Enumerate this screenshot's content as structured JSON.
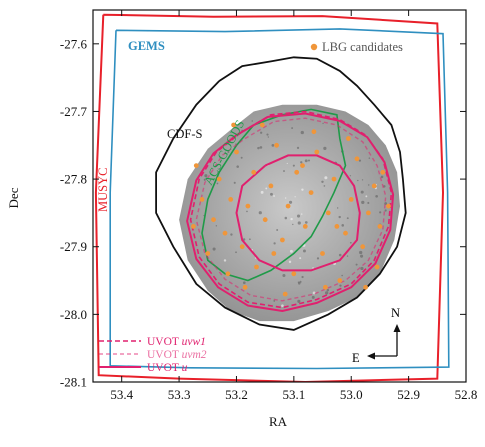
{
  "chart_data": {
    "type": "scatter",
    "title": "",
    "xlabel": "RA",
    "ylabel": "Dec",
    "xlim": [
      53.45,
      52.8
    ],
    "ylim": [
      -28.1,
      -27.55
    ],
    "x_ticks": [
      "53.4",
      "53.3",
      "53.2",
      "53.1",
      "53.0",
      "52.9",
      "52.8"
    ],
    "x_tick_values": [
      53.4,
      53.3,
      53.2,
      53.1,
      53.0,
      52.9,
      52.8
    ],
    "y_ticks": [
      "-27.6",
      "-27.7",
      "-27.8",
      "-27.9",
      "-28.0",
      "-28.1"
    ],
    "y_tick_values": [
      -27.6,
      -27.7,
      -27.8,
      -27.9,
      -28.0,
      -28.1
    ],
    "x_inverted": true,
    "grid": false,
    "colors": {
      "musyc": "#e8202a",
      "gems": "#2f8fc0",
      "cdfs": "#111111",
      "goods": "#1f9a48",
      "uvot": "#e0206e",
      "lbg": "#f0963a",
      "image_light": "#c9c9c9",
      "image_dark": "#8e8e8e"
    },
    "annotations": {
      "gems": "GEMS",
      "musyc": "MUSYC",
      "cdfs": "CDF-S",
      "goods": "ACS-GOODS",
      "lbg": "LBG candidates",
      "north": "N",
      "east": "E"
    },
    "legend": [
      {
        "label_prefix": "UVOT ",
        "label_filter": "uvw1",
        "style": "dashed"
      },
      {
        "label_prefix": "UVOT ",
        "label_filter": "uvm2",
        "style": "light-dashed"
      },
      {
        "label_prefix": "UVOT ",
        "label_filter": "u",
        "style": "solid"
      }
    ],
    "regions": {
      "musyc": [
        [
          53.432,
          -27.557
        ],
        [
          53.24,
          -27.56
        ],
        [
          53.05,
          -27.559
        ],
        [
          52.85,
          -27.57
        ],
        [
          52.84,
          -27.82
        ],
        [
          52.85,
          -28.095
        ],
        [
          53.08,
          -28.1
        ],
        [
          53.3,
          -28.095
        ],
        [
          53.44,
          -28.09
        ],
        [
          53.445,
          -27.82
        ]
      ],
      "gems": [
        [
          53.41,
          -27.58
        ],
        [
          53.22,
          -27.582
        ],
        [
          53.02,
          -27.578
        ],
        [
          52.84,
          -27.585
        ],
        [
          52.832,
          -27.82
        ],
        [
          52.83,
          -28.078
        ],
        [
          53.06,
          -28.08
        ],
        [
          53.28,
          -28.079
        ],
        [
          53.42,
          -28.076
        ],
        [
          53.42,
          -27.82
        ]
      ],
      "cdfs": [
        [
          53.23,
          -27.655
        ],
        [
          53.19,
          -27.633
        ],
        [
          53.14,
          -27.626
        ],
        [
          53.1,
          -27.62
        ],
        [
          53.06,
          -27.622
        ],
        [
          53.02,
          -27.64
        ],
        [
          52.99,
          -27.662
        ],
        [
          52.96,
          -27.69
        ],
        [
          52.93,
          -27.72
        ],
        [
          52.915,
          -27.76
        ],
        [
          52.91,
          -27.8
        ],
        [
          52.905,
          -27.85
        ],
        [
          52.92,
          -27.9
        ],
        [
          52.95,
          -27.94
        ],
        [
          52.99,
          -27.975
        ],
        [
          53.04,
          -28.0
        ],
        [
          53.1,
          -28.023
        ],
        [
          53.16,
          -28.015
        ],
        [
          53.22,
          -27.99
        ],
        [
          53.27,
          -27.955
        ],
        [
          53.31,
          -27.9
        ],
        [
          53.34,
          -27.85
        ],
        [
          53.34,
          -27.79
        ],
        [
          53.31,
          -27.74
        ],
        [
          53.27,
          -27.69
        ]
      ],
      "goods": [
        [
          53.12,
          -27.705
        ],
        [
          53.07,
          -27.697
        ],
        [
          53.025,
          -27.705
        ],
        [
          53.02,
          -27.74
        ],
        [
          53.01,
          -27.78
        ],
        [
          53.03,
          -27.82
        ],
        [
          53.05,
          -27.855
        ],
        [
          53.07,
          -27.885
        ],
        [
          53.1,
          -27.91
        ],
        [
          53.14,
          -27.935
        ],
        [
          53.18,
          -27.95
        ],
        [
          53.22,
          -27.94
        ],
        [
          53.25,
          -27.92
        ],
        [
          53.26,
          -27.88
        ],
        [
          53.25,
          -27.83
        ],
        [
          53.23,
          -27.79
        ],
        [
          53.2,
          -27.75
        ],
        [
          53.17,
          -27.72
        ]
      ],
      "image": [
        [
          53.2,
          -27.72
        ],
        [
          53.17,
          -27.7
        ],
        [
          53.12,
          -27.69
        ],
        [
          53.06,
          -27.69
        ],
        [
          53.01,
          -27.7
        ],
        [
          52.97,
          -27.72
        ],
        [
          52.94,
          -27.75
        ],
        [
          52.92,
          -27.79
        ],
        [
          52.915,
          -27.84
        ],
        [
          52.925,
          -27.89
        ],
        [
          52.95,
          -27.94
        ],
        [
          52.99,
          -27.975
        ],
        [
          53.04,
          -27.995
        ],
        [
          53.1,
          -28.01
        ],
        [
          53.16,
          -28.01
        ],
        [
          53.21,
          -27.995
        ],
        [
          53.25,
          -27.965
        ],
        [
          53.285,
          -27.92
        ],
        [
          53.3,
          -27.86
        ],
        [
          53.285,
          -27.8
        ],
        [
          53.25,
          -27.755
        ]
      ],
      "uvot_uvw1": [
        [
          53.19,
          -27.73
        ],
        [
          53.14,
          -27.705
        ],
        [
          53.08,
          -27.7
        ],
        [
          53.02,
          -27.712
        ],
        [
          52.975,
          -27.735
        ],
        [
          52.945,
          -27.77
        ],
        [
          52.93,
          -27.82
        ],
        [
          52.935,
          -27.87
        ],
        [
          52.96,
          -27.92
        ],
        [
          53.0,
          -27.955
        ],
        [
          53.06,
          -27.978
        ],
        [
          53.12,
          -27.99
        ],
        [
          53.18,
          -27.982
        ],
        [
          53.23,
          -27.955
        ],
        [
          53.265,
          -27.915
        ],
        [
          53.28,
          -27.86
        ],
        [
          53.265,
          -27.8
        ],
        [
          53.235,
          -27.76
        ]
      ],
      "uvot_uvm2": [
        [
          53.185,
          -27.74
        ],
        [
          53.135,
          -27.715
        ],
        [
          53.08,
          -27.71
        ],
        [
          53.025,
          -27.72
        ],
        [
          52.98,
          -27.745
        ],
        [
          52.955,
          -27.78
        ],
        [
          52.94,
          -27.825
        ],
        [
          52.945,
          -27.875
        ],
        [
          52.97,
          -27.92
        ],
        [
          53.01,
          -27.95
        ],
        [
          53.065,
          -27.97
        ],
        [
          53.12,
          -27.98
        ],
        [
          53.175,
          -27.972
        ],
        [
          53.22,
          -27.948
        ],
        [
          53.255,
          -27.91
        ],
        [
          53.27,
          -27.86
        ],
        [
          53.255,
          -27.805
        ],
        [
          53.225,
          -27.765
        ]
      ],
      "uvot_u": [
        [
          53.15,
          -27.78
        ],
        [
          53.11,
          -27.765
        ],
        [
          53.06,
          -27.765
        ],
        [
          53.02,
          -27.78
        ],
        [
          52.995,
          -27.81
        ],
        [
          52.985,
          -27.85
        ],
        [
          52.99,
          -27.89
        ],
        [
          53.02,
          -27.92
        ],
        [
          53.07,
          -27.935
        ],
        [
          53.12,
          -27.935
        ],
        [
          53.16,
          -27.92
        ],
        [
          53.19,
          -27.89
        ],
        [
          53.2,
          -27.85
        ],
        [
          53.19,
          -27.81
        ]
      ],
      "uvot_u_outer": [
        [
          53.2,
          -27.735
        ],
        [
          53.145,
          -27.708
        ],
        [
          53.08,
          -27.703
        ],
        [
          53.02,
          -27.714
        ],
        [
          52.972,
          -27.738
        ],
        [
          52.942,
          -27.775
        ],
        [
          52.927,
          -27.823
        ],
        [
          52.932,
          -27.875
        ],
        [
          52.958,
          -27.925
        ],
        [
          53.0,
          -27.96
        ],
        [
          53.06,
          -27.983
        ],
        [
          53.12,
          -27.995
        ],
        [
          53.18,
          -27.987
        ],
        [
          53.232,
          -27.96
        ],
        [
          53.27,
          -27.918
        ],
        [
          53.286,
          -27.862
        ],
        [
          53.27,
          -27.802
        ],
        [
          53.24,
          -27.762
        ]
      ]
    },
    "lbg_points": [
      [
        53.27,
        -27.78
      ],
      [
        53.26,
        -27.83
      ],
      [
        53.24,
        -27.86
      ],
      [
        53.23,
        -27.8
      ],
      [
        53.22,
        -27.88
      ],
      [
        53.21,
        -27.83
      ],
      [
        53.2,
        -27.76
      ],
      [
        53.19,
        -27.9
      ],
      [
        53.18,
        -27.84
      ],
      [
        53.17,
        -27.79
      ],
      [
        53.165,
        -27.93
      ],
      [
        53.15,
        -27.86
      ],
      [
        53.14,
        -27.81
      ],
      [
        53.13,
        -27.75
      ],
      [
        53.12,
        -27.89
      ],
      [
        53.11,
        -27.84
      ],
      [
        53.1,
        -27.94
      ],
      [
        53.095,
        -27.79
      ],
      [
        53.08,
        -27.87
      ],
      [
        53.07,
        -27.82
      ],
      [
        53.06,
        -27.76
      ],
      [
        53.05,
        -27.91
      ],
      [
        53.04,
        -27.85
      ],
      [
        53.03,
        -27.8
      ],
      [
        53.02,
        -27.95
      ],
      [
        53.01,
        -27.88
      ],
      [
        53.0,
        -27.83
      ],
      [
        52.99,
        -27.77
      ],
      [
        52.98,
        -27.9
      ],
      [
        52.97,
        -27.85
      ],
      [
        52.96,
        -27.81
      ],
      [
        52.955,
        -27.93
      ],
      [
        52.95,
        -27.87
      ],
      [
        53.25,
        -27.91
      ],
      [
        53.215,
        -27.94
      ],
      [
        53.155,
        -27.72
      ],
      [
        53.115,
        -27.97
      ],
      [
        53.065,
        -27.73
      ],
      [
        53.005,
        -27.74
      ],
      [
        52.945,
        -27.79
      ],
      [
        52.935,
        -27.84
      ],
      [
        53.185,
        -27.96
      ],
      [
        53.135,
        -27.91
      ],
      [
        53.045,
        -27.96
      ],
      [
        53.275,
        -27.87
      ],
      [
        53.205,
        -27.72
      ],
      [
        53.085,
        -27.78
      ],
      [
        53.025,
        -27.87
      ],
      [
        52.975,
        -27.96
      ]
    ]
  }
}
